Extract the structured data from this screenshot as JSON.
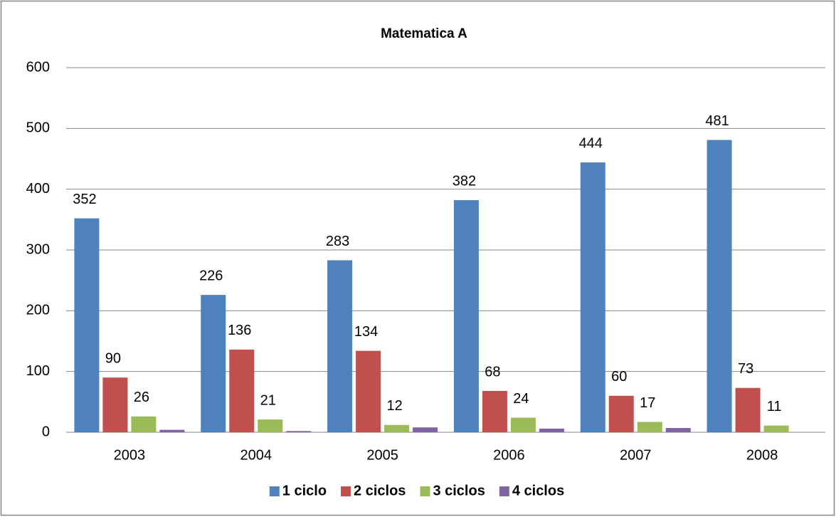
{
  "chart_data": {
    "type": "bar",
    "title": "Matematica A",
    "categories": [
      "2003",
      "2004",
      "2005",
      "2006",
      "2007",
      "2008"
    ],
    "series": [
      {
        "name": "1 ciclo",
        "color": "#4f81bd",
        "values": [
          352,
          226,
          283,
          382,
          444,
          481
        ],
        "data_labels": true
      },
      {
        "name": "2 ciclos",
        "color": "#c0504d",
        "values": [
          90,
          136,
          134,
          68,
          60,
          73
        ],
        "data_labels": true
      },
      {
        "name": "3 ciclos",
        "color": "#9bbb59",
        "values": [
          26,
          21,
          12,
          24,
          17,
          11
        ],
        "data_labels": true
      },
      {
        "name": "4 ciclos",
        "color": "#8064a2",
        "values": [
          4,
          2,
          8,
          6,
          7,
          0
        ],
        "data_labels": false
      }
    ],
    "ylim": [
      0,
      600
    ],
    "yticks": [
      0,
      100,
      200,
      300,
      400,
      500,
      600
    ],
    "grid": true,
    "legend": "bottom"
  }
}
